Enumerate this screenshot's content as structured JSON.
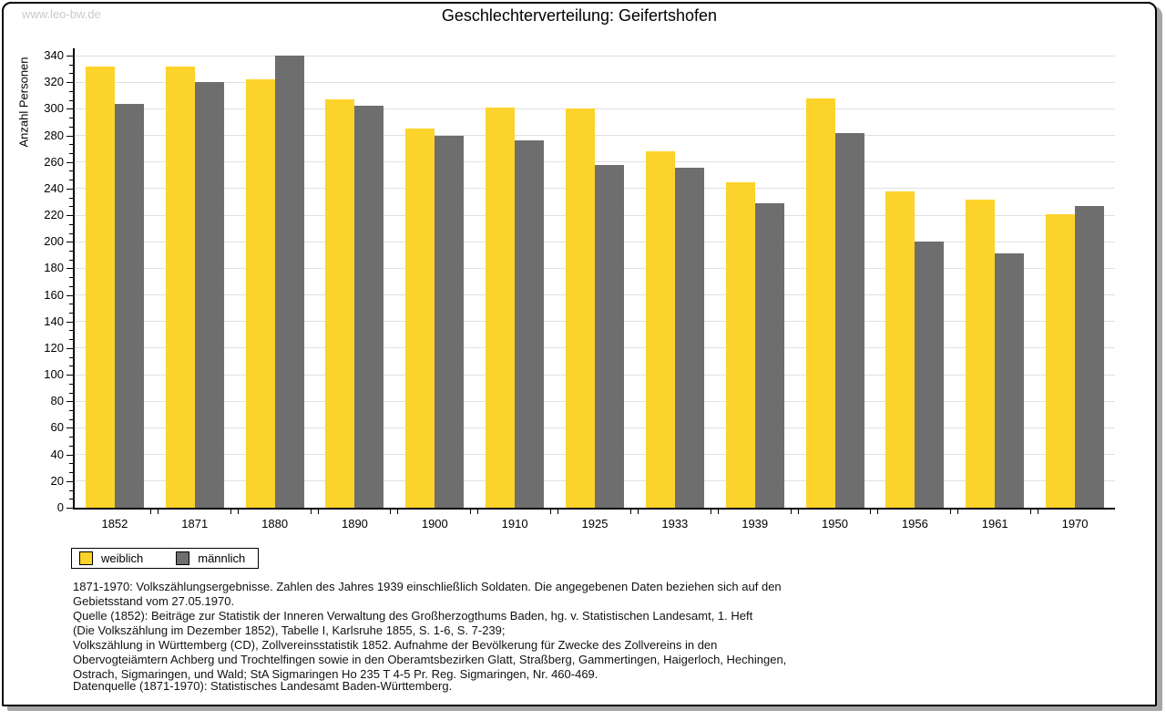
{
  "page": {
    "brand": "www.leo-bw.de",
    "title": "Geschlechterverteilung: Geifertshofen"
  },
  "chart_data": {
    "type": "bar",
    "title": "Geschlechterverteilung: Geifertshofen",
    "xlabel": "",
    "ylabel": "Anzahl Personen",
    "ylim": [
      0,
      340
    ],
    "ytick_step": 20,
    "grid": true,
    "legend_position": "bottom-left",
    "categories": [
      "1852",
      "1871",
      "1880",
      "1890",
      "1900",
      "1910",
      "1925",
      "1933",
      "1939",
      "1950",
      "1956",
      "1961",
      "1970"
    ],
    "series": [
      {
        "name": "weiblich",
        "color": "#FCD32B",
        "values": [
          332,
          332,
          322,
          307,
          285,
          301,
          300,
          268,
          245,
          308,
          238,
          232,
          221
        ]
      },
      {
        "name": "männlich",
        "color": "#6E6E6E",
        "values": [
          304,
          320,
          340,
          302,
          280,
          276,
          258,
          256,
          229,
          282,
          200,
          191,
          227
        ]
      }
    ]
  },
  "footnote": {
    "lines": [
      "1871-1970: Volkszählungsergebnisse. Zahlen des Jahres 1939 einschließlich Soldaten. Die angegebenen Daten beziehen sich auf den",
      "Gebietsstand vom 27.05.1970.",
      "Quelle (1852): Beiträge zur Statistik der Inneren Verwaltung des Großherzogthums Baden, hg. v. Statistischen Landesamt, 1. Heft",
      "(Die Volkszählung im Dezember 1852), Tabelle I, Karlsruhe 1855, S. 1-6, S. 7-239;",
      "Volkszählung in Württemberg (CD), Zollvereinsstatistik 1852. Aufnahme der Bevölkerung für Zwecke des Zollvereins in den",
      "Obervogteiämtern Achberg und Trochtelfingen sowie in den Oberamtsbezirken Glatt, Straßberg, Gammertingen, Haigerloch, Hechingen,",
      "Ostrach, Sigmaringen, und Wald; StA Sigmaringen Ho 235 T 4-5 Pr. Reg. Sigmaringen, Nr. 460-469."
    ],
    "datasource": "Datenquelle (1871-1970): Statistisches Landesamt Baden-Württemberg."
  }
}
